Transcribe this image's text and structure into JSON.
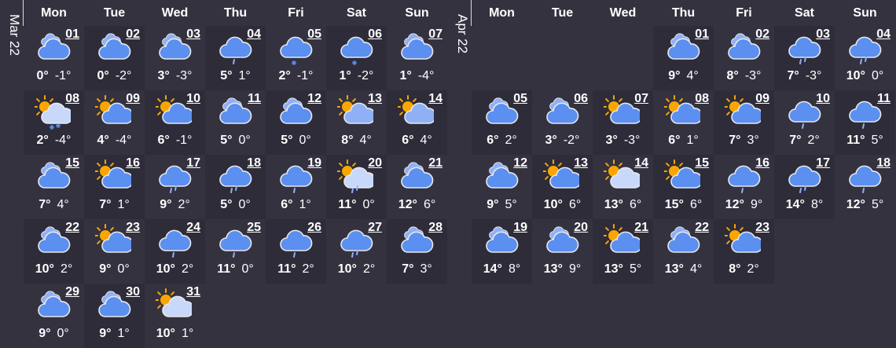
{
  "weekdays": [
    "Mon",
    "Tue",
    "Wed",
    "Thu",
    "Fri",
    "Sat",
    "Sun"
  ],
  "colors": {
    "background": "#34323f",
    "cloud": "#5b8ff0",
    "cloud_back": "#8fb0f5",
    "cloud_light": "#c8d8fa",
    "sun": "#f9a602",
    "rain": "#8fb0f5"
  },
  "months": [
    {
      "label": "Mar 22",
      "start_weekday": 1,
      "days": [
        {
          "d": "01",
          "hi": "0°",
          "lo": "-1°",
          "icon": "cloudy"
        },
        {
          "d": "02",
          "hi": "0°",
          "lo": "-2°",
          "icon": "cloudy"
        },
        {
          "d": "03",
          "hi": "3°",
          "lo": "-3°",
          "icon": "cloudy"
        },
        {
          "d": "04",
          "hi": "5°",
          "lo": "1°",
          "icon": "light-rain"
        },
        {
          "d": "05",
          "hi": "2°",
          "lo": "-1°",
          "icon": "light-snow"
        },
        {
          "d": "06",
          "hi": "1°",
          "lo": "-2°",
          "icon": "light-snow"
        },
        {
          "d": "07",
          "hi": "1°",
          "lo": "-4°",
          "icon": "cloudy"
        },
        {
          "d": "08",
          "hi": "2°",
          "lo": "-4°",
          "icon": "sun-snow"
        },
        {
          "d": "09",
          "hi": "4°",
          "lo": "-4°",
          "icon": "partly-cloudy"
        },
        {
          "d": "10",
          "hi": "6°",
          "lo": "-1°",
          "icon": "partly-cloudy"
        },
        {
          "d": "11",
          "hi": "5°",
          "lo": "0°",
          "icon": "cloudy"
        },
        {
          "d": "12",
          "hi": "5°",
          "lo": "0°",
          "icon": "cloudy"
        },
        {
          "d": "13",
          "hi": "8°",
          "lo": "4°",
          "icon": "sun-thin-cloud"
        },
        {
          "d": "14",
          "hi": "6°",
          "lo": "4°",
          "icon": "sun-thin-cloud"
        },
        {
          "d": "15",
          "hi": "7°",
          "lo": "4°",
          "icon": "cloudy"
        },
        {
          "d": "16",
          "hi": "7°",
          "lo": "1°",
          "icon": "partly-cloudy"
        },
        {
          "d": "17",
          "hi": "9°",
          "lo": "2°",
          "icon": "rain"
        },
        {
          "d": "18",
          "hi": "5°",
          "lo": "0°",
          "icon": "rain"
        },
        {
          "d": "19",
          "hi": "6°",
          "lo": "1°",
          "icon": "light-rain"
        },
        {
          "d": "20",
          "hi": "11°",
          "lo": "0°",
          "icon": "sun-rain"
        },
        {
          "d": "21",
          "hi": "12°",
          "lo": "6°",
          "icon": "cloudy"
        },
        {
          "d": "22",
          "hi": "10°",
          "lo": "2°",
          "icon": "cloudy"
        },
        {
          "d": "23",
          "hi": "9°",
          "lo": "0°",
          "icon": "partly-cloudy"
        },
        {
          "d": "24",
          "hi": "10°",
          "lo": "2°",
          "icon": "light-rain"
        },
        {
          "d": "25",
          "hi": "11°",
          "lo": "0°",
          "icon": "light-rain"
        },
        {
          "d": "26",
          "hi": "11°",
          "lo": "2°",
          "icon": "light-rain"
        },
        {
          "d": "27",
          "hi": "10°",
          "lo": "2°",
          "icon": "rain"
        },
        {
          "d": "28",
          "hi": "7°",
          "lo": "3°",
          "icon": "cloudy"
        },
        {
          "d": "29",
          "hi": "9°",
          "lo": "0°",
          "icon": "cloudy"
        },
        {
          "d": "30",
          "hi": "9°",
          "lo": "1°",
          "icon": "cloudy"
        },
        {
          "d": "31",
          "hi": "10°",
          "lo": "1°",
          "icon": "sun-light-cloud"
        }
      ]
    },
    {
      "label": "Apr 22",
      "start_weekday": 4,
      "days": [
        {
          "d": "01",
          "hi": "9°",
          "lo": "4°",
          "icon": "cloudy"
        },
        {
          "d": "02",
          "hi": "8°",
          "lo": "-3°",
          "icon": "cloudy"
        },
        {
          "d": "03",
          "hi": "7°",
          "lo": "-3°",
          "icon": "rain"
        },
        {
          "d": "04",
          "hi": "10°",
          "lo": "0°",
          "icon": "rain"
        },
        {
          "d": "05",
          "hi": "6°",
          "lo": "2°",
          "icon": "cloudy"
        },
        {
          "d": "06",
          "hi": "3°",
          "lo": "-2°",
          "icon": "cloudy"
        },
        {
          "d": "07",
          "hi": "3°",
          "lo": "-3°",
          "icon": "partly-cloudy"
        },
        {
          "d": "08",
          "hi": "6°",
          "lo": "1°",
          "icon": "partly-cloudy"
        },
        {
          "d": "09",
          "hi": "7°",
          "lo": "3°",
          "icon": "partly-cloudy"
        },
        {
          "d": "10",
          "hi": "7°",
          "lo": "2°",
          "icon": "light-rain"
        },
        {
          "d": "11",
          "hi": "11°",
          "lo": "5°",
          "icon": "light-rain"
        },
        {
          "d": "12",
          "hi": "9°",
          "lo": "5°",
          "icon": "cloudy"
        },
        {
          "d": "13",
          "hi": "10°",
          "lo": "6°",
          "icon": "partly-cloudy"
        },
        {
          "d": "14",
          "hi": "13°",
          "lo": "6°",
          "icon": "sun-light-cloud"
        },
        {
          "d": "15",
          "hi": "15°",
          "lo": "6°",
          "icon": "partly-cloudy"
        },
        {
          "d": "16",
          "hi": "12°",
          "lo": "9°",
          "icon": "light-rain"
        },
        {
          "d": "17",
          "hi": "14°",
          "lo": "8°",
          "icon": "rain"
        },
        {
          "d": "18",
          "hi": "12°",
          "lo": "5°",
          "icon": "light-rain"
        },
        {
          "d": "19",
          "hi": "14°",
          "lo": "8°",
          "icon": "cloudy"
        },
        {
          "d": "20",
          "hi": "13°",
          "lo": "9°",
          "icon": "cloudy"
        },
        {
          "d": "21",
          "hi": "13°",
          "lo": "5°",
          "icon": "partly-cloudy"
        },
        {
          "d": "22",
          "hi": "13°",
          "lo": "4°",
          "icon": "cloudy"
        },
        {
          "d": "23",
          "hi": "8°",
          "lo": "2°",
          "icon": "partly-cloudy"
        }
      ]
    }
  ]
}
